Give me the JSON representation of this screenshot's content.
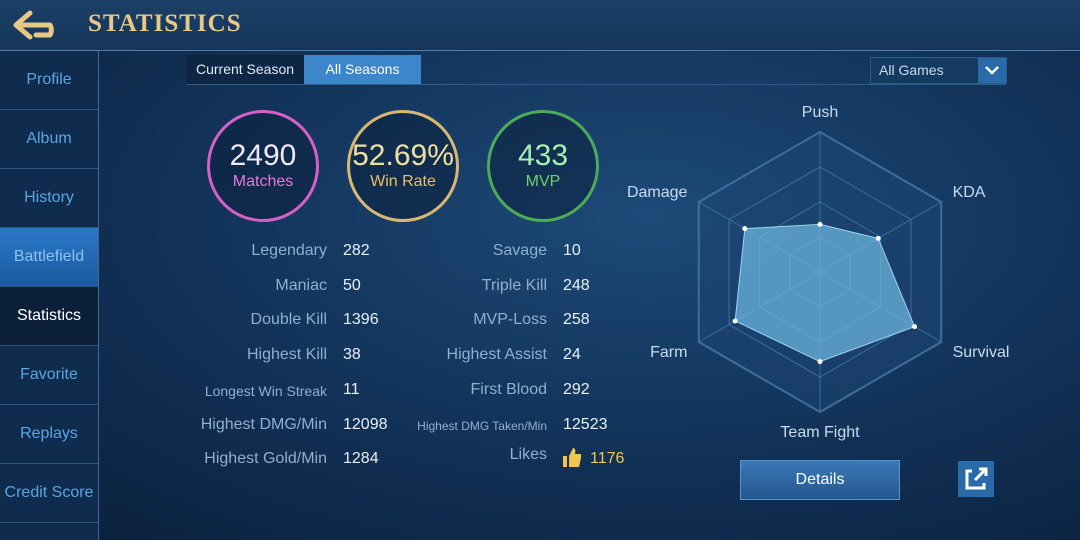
{
  "header": {
    "title": "STATISTICS"
  },
  "sidebar": [
    "Profile",
    "Album",
    "History",
    "Battlefield",
    "Statistics",
    "Favorite",
    "Replays",
    "Credit Score"
  ],
  "tabs": [
    "Current Season",
    "All Seasons"
  ],
  "filter": "All Games",
  "summary": [
    {
      "value": 2490,
      "label": "Matches"
    },
    {
      "value": "52.69%",
      "label": "Win Rate"
    },
    {
      "value": 433,
      "label": "MVP"
    }
  ],
  "stats_left": [
    {
      "label": "Legendary",
      "value": 282
    },
    {
      "label": "Maniac",
      "value": 50
    },
    {
      "label": "Double Kill",
      "value": 1396
    },
    {
      "label": "Highest Kill",
      "value": 38
    },
    {
      "label": "Longest Win Streak",
      "value": 11
    },
    {
      "label": "Highest DMG/Min",
      "value": 12098
    },
    {
      "label": "Highest Gold/Min",
      "value": 1284
    }
  ],
  "stats_right": [
    {
      "label": "Savage",
      "value": 10
    },
    {
      "label": "Triple Kill",
      "value": 248
    },
    {
      "label": "MVP-Loss",
      "value": 258
    },
    {
      "label": "Highest Assist",
      "value": 24
    },
    {
      "label": "First Blood",
      "value": 292
    },
    {
      "label": "Highest DMG Taken/Min",
      "value": 12523
    },
    {
      "label": "Likes",
      "value": 1176
    }
  ],
  "radar": {
    "axes": [
      "Push",
      "KDA",
      "Survival",
      "Team Fight",
      "Farm",
      "Damage"
    ],
    "values": [
      34,
      48,
      78,
      64,
      70,
      62
    ],
    "range": [
      0,
      100
    ]
  },
  "details_button": "Details"
}
